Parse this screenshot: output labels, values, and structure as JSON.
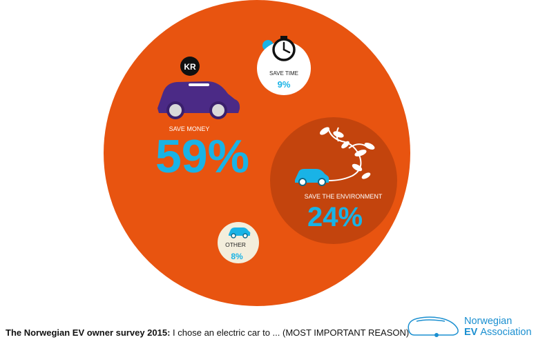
{
  "chart_data": {
    "type": "bubble",
    "title": "",
    "series": [
      {
        "label": "SAVE MONEY",
        "value": 59,
        "value_label": "59%"
      },
      {
        "label": "SAVE THE ENVIRONMENT",
        "value": 24,
        "value_label": "24%"
      },
      {
        "label": "SAVE TIME",
        "value": 9,
        "value_label": "9%"
      },
      {
        "label": "OTHER",
        "value": 8,
        "value_label": "8%"
      }
    ]
  },
  "footer": {
    "bold": "The Norwegian EV owner survey 2015:",
    "text": "I chose an electric car to ... (MOST IMPORTANT REASON)"
  },
  "logo": {
    "line1": "Norwegian",
    "line2_bold": "EV",
    "line2_rest": "Association"
  },
  "badge": "KR",
  "colors": {
    "orange": "#e85410",
    "dark_orange": "#c3440d",
    "cyan": "#19b3e6",
    "purple": "#4b2a86",
    "cream": "#f3eedc",
    "brand_blue": "#1a8fd0"
  }
}
